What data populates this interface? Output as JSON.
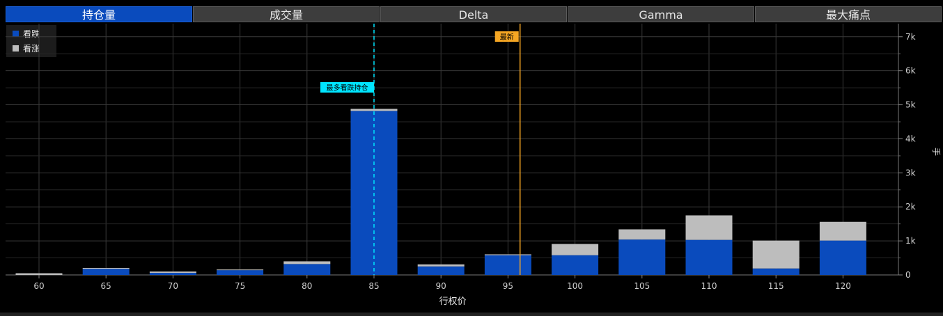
{
  "tabs": [
    {
      "label": "持仓量",
      "active": true
    },
    {
      "label": "成交量",
      "active": false
    },
    {
      "label": "Delta",
      "active": false
    },
    {
      "label": "Gamma",
      "active": false
    },
    {
      "label": "最大痛点",
      "active": false
    }
  ],
  "legend": [
    {
      "label": "看跌",
      "color": "#0a4bbd"
    },
    {
      "label": "看涨",
      "color": "#bdbdbd"
    }
  ],
  "chart_data": {
    "type": "bar",
    "stacked": true,
    "categories": [
      "60",
      "65",
      "70",
      "75",
      "80",
      "85",
      "90",
      "95",
      "100",
      "105",
      "110",
      "115",
      "120"
    ],
    "series": [
      {
        "name": "看跌",
        "color": "#0a4bbd",
        "values": [
          0,
          180,
          60,
          140,
          320,
          4820,
          250,
          580,
          580,
          1040,
          1030,
          190,
          1010
        ]
      },
      {
        "name": "看涨",
        "color": "#bdbdbd",
        "values": [
          50,
          25,
          40,
          20,
          80,
          60,
          60,
          25,
          330,
          300,
          720,
          820,
          550
        ]
      }
    ],
    "xlabel": "行权价",
    "ylabel": "手",
    "y_ticks": [
      "0",
      "1k",
      "2k",
      "3k",
      "4k",
      "5k",
      "6k",
      "7k"
    ],
    "ylim": [
      0,
      7200
    ],
    "grid": true,
    "legend_position": "top-left",
    "annotations": [
      {
        "label": "最多看跌持仓",
        "x": 85,
        "color": "#00e5ff",
        "style": "dashed"
      },
      {
        "label": "最新",
        "x": 95.9,
        "color": "#f5a623",
        "style": "solid"
      }
    ]
  }
}
